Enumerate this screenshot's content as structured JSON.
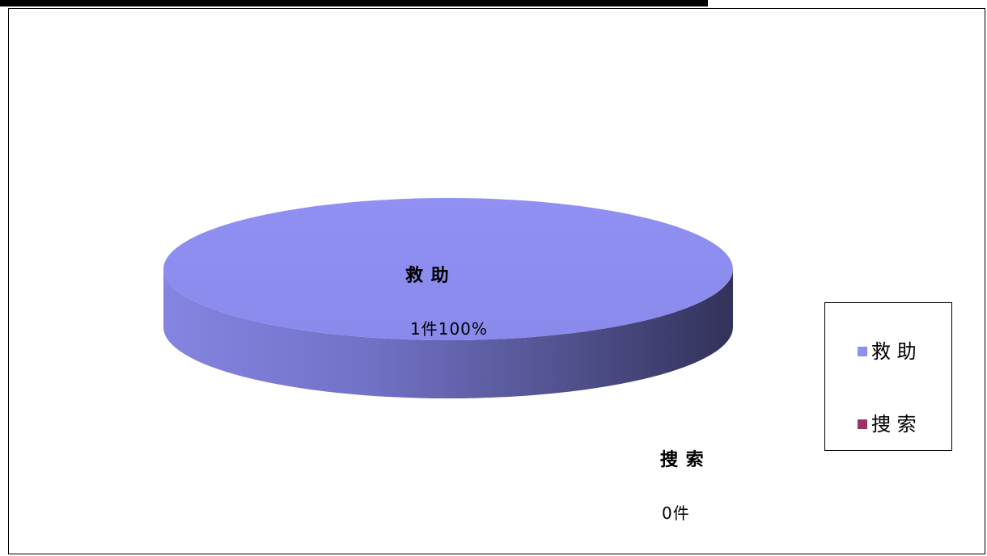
{
  "chart_data": {
    "type": "pie",
    "categories": [
      "救 助",
      "捜 索"
    ],
    "values": [
      1,
      0
    ],
    "colors": [
      "#8E8EEF",
      "#993366"
    ],
    "data_labels": [
      {
        "name": "救 助",
        "value_text": "1件100%"
      },
      {
        "name": "捜 索",
        "value_text": "0件"
      }
    ],
    "legend": {
      "placement": "right",
      "entries": [
        "救 助",
        "捜 索"
      ]
    },
    "three_d": true
  }
}
